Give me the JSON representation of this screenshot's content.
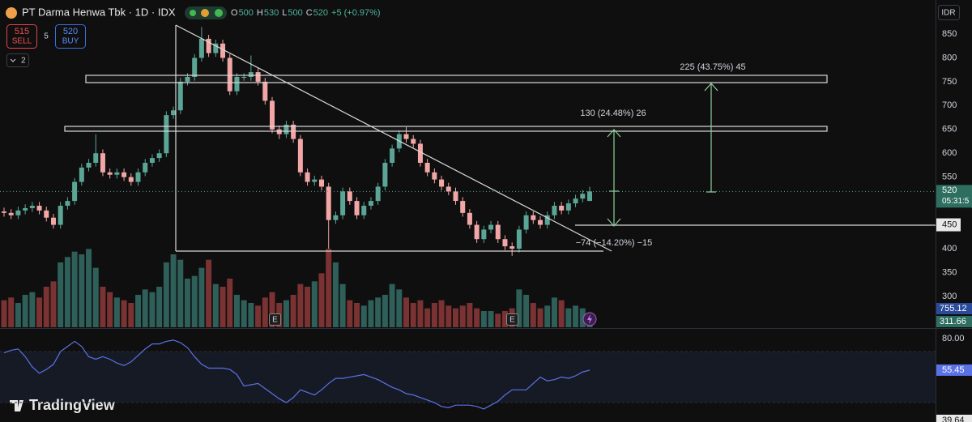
{
  "chart_data": {
    "type": "candlestick",
    "title": "PT Darma Henwa Tbk · 1D · IDX",
    "ohlc_labels": [
      "O",
      "H",
      "L",
      "C"
    ],
    "change": "+5 (+0.97%)",
    "sell": {
      "price": 515,
      "label": "SELL"
    },
    "buy": {
      "price": 520,
      "label": "BUY"
    },
    "spread": 5,
    "layouts": 2,
    "currency": "IDR",
    "countdown": "05:31:5",
    "open": [
      478,
      475,
      470,
      480,
      485,
      490,
      480,
      465,
      450,
      490,
      500,
      540,
      570,
      580,
      600,
      560,
      555,
      560,
      550,
      540,
      560,
      580,
      590,
      600,
      680,
      690,
      750,
      760,
      800,
      840,
      810,
      830,
      800,
      730,
      760,
      760,
      770,
      750,
      710,
      650,
      640,
      660,
      630,
      560,
      540,
      545,
      530,
      460,
      470,
      520,
      500,
      470,
      490,
      500,
      530,
      580,
      610,
      640,
      630,
      620,
      580,
      560,
      545,
      530,
      520,
      500,
      475,
      450,
      420,
      440,
      450,
      420,
      405,
      400,
      440,
      470,
      460,
      450,
      470,
      490,
      480,
      495,
      505,
      500
    ],
    "high": [
      486,
      483,
      488,
      493,
      498,
      498,
      488,
      473,
      498,
      508,
      548,
      578,
      588,
      640,
      608,
      568,
      568,
      568,
      558,
      568,
      588,
      598,
      608,
      688,
      698,
      758,
      768,
      808,
      865,
      848,
      838,
      838,
      808,
      768,
      768,
      805,
      778,
      758,
      718,
      658,
      668,
      668,
      638,
      568,
      553,
      553,
      538,
      478,
      528,
      528,
      508,
      498,
      508,
      538,
      588,
      618,
      648,
      655,
      638,
      628,
      588,
      568,
      553,
      538,
      528,
      508,
      483,
      458,
      448,
      458,
      458,
      428,
      413,
      448,
      478,
      478,
      468,
      478,
      498,
      498,
      503,
      513,
      523,
      530
    ],
    "low": [
      467,
      462,
      462,
      472,
      477,
      472,
      457,
      442,
      442,
      482,
      492,
      532,
      562,
      572,
      552,
      547,
      547,
      542,
      532,
      532,
      552,
      572,
      582,
      592,
      672,
      682,
      742,
      752,
      792,
      802,
      802,
      792,
      722,
      722,
      752,
      752,
      742,
      702,
      642,
      630,
      632,
      622,
      552,
      532,
      532,
      522,
      400,
      452,
      462,
      492,
      462,
      462,
      482,
      492,
      522,
      572,
      602,
      622,
      612,
      572,
      552,
      537,
      522,
      512,
      492,
      467,
      442,
      412,
      412,
      432,
      412,
      397,
      385,
      392,
      432,
      452,
      442,
      442,
      462,
      472,
      472,
      487,
      497,
      500
    ],
    "close": [
      475,
      470,
      480,
      485,
      490,
      480,
      465,
      450,
      490,
      500,
      540,
      570,
      580,
      600,
      560,
      555,
      560,
      550,
      540,
      560,
      580,
      590,
      600,
      680,
      690,
      750,
      760,
      800,
      840,
      810,
      830,
      800,
      730,
      760,
      760,
      770,
      750,
      710,
      650,
      640,
      660,
      630,
      560,
      540,
      545,
      530,
      460,
      470,
      520,
      500,
      470,
      490,
      500,
      530,
      580,
      610,
      640,
      630,
      620,
      580,
      560,
      545,
      530,
      520,
      500,
      475,
      450,
      420,
      440,
      450,
      420,
      405,
      400,
      440,
      470,
      460,
      450,
      470,
      490,
      480,
      495,
      505,
      515,
      520
    ],
    "volume": [
      1000,
      1100,
      900,
      1200,
      1300,
      1100,
      1500,
      1700,
      2400,
      2600,
      2800,
      2700,
      2900,
      2200,
      1500,
      1300,
      1100,
      1000,
      900,
      1200,
      1400,
      1300,
      1500,
      2400,
      2700,
      2500,
      1800,
      1900,
      2200,
      2500,
      1600,
      1500,
      1800,
      1200,
      1000,
      900,
      800,
      1100,
      1300,
      900,
      1000,
      1200,
      1600,
      1500,
      1700,
      2000,
      2900,
      2400,
      1600,
      1000,
      900,
      800,
      1000,
      1100,
      1200,
      1600,
      1400,
      1100,
      900,
      1000,
      700,
      900,
      1000,
      800,
      700,
      800,
      900,
      700,
      600,
      600,
      500,
      600,
      700,
      1400,
      1200,
      900,
      700,
      800,
      1100,
      1000,
      700,
      800,
      700,
      500
    ],
    "volume_ylim": [
      0,
      12120
    ],
    "volume_labels": [
      755.12,
      311.66
    ],
    "hline": 450,
    "ylim": [
      235.3,
      921.3
    ],
    "yticks": [
      300,
      350,
      400,
      450,
      500,
      550,
      600,
      650,
      700,
      750,
      800,
      850
    ],
    "annotations": [
      "225 (43.75%) 45",
      "130 (24.48%) 26",
      "−74 (−14.20%) −15"
    ],
    "up_color": "#5ba596",
    "down_color": "#f2a7a6",
    "volume_up_color": "#2f5f59",
    "volume_down_color": "#7b3232",
    "rsi": {
      "values": [
        69,
        71,
        72,
        66,
        58,
        53,
        56,
        60,
        70,
        74,
        78,
        74,
        66,
        64,
        66,
        64,
        61,
        59,
        62,
        67,
        72,
        76,
        76,
        78,
        79,
        77,
        73,
        66,
        60,
        57,
        57,
        57,
        56,
        52,
        43,
        44,
        45,
        41,
        37,
        33,
        30,
        34,
        40,
        38,
        36,
        40,
        45,
        49,
        49,
        50,
        51,
        52,
        50,
        48,
        45,
        42,
        40,
        37,
        36,
        34,
        32,
        30,
        27,
        26,
        28,
        28,
        28,
        27,
        25,
        28,
        31,
        36,
        40,
        40,
        40,
        45,
        50,
        47,
        48,
        50,
        49,
        51,
        54,
        55.45
      ],
      "color": "#5b72e6",
      "ylim": [
        14.8,
        87.8
      ],
      "band": [
        30,
        70
      ],
      "yticks": [
        {
          "value": 80,
          "label": "80.00"
        }
      ],
      "lower_label": 39.64
    },
    "event_marker": "E",
    "brand": "TradingView"
  }
}
